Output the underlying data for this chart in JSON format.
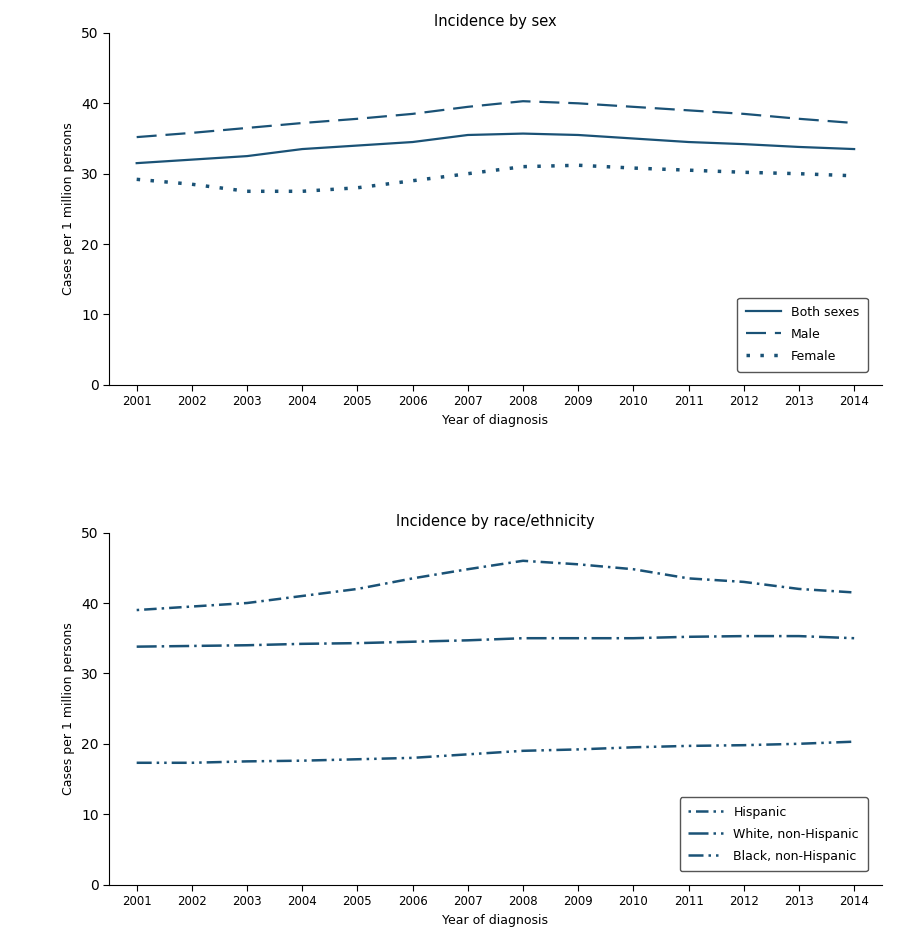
{
  "years": [
    2001,
    2002,
    2003,
    2004,
    2005,
    2006,
    2007,
    2008,
    2009,
    2010,
    2011,
    2012,
    2013,
    2014
  ],
  "sex": {
    "title": "Incidence by sex",
    "both_sexes": [
      31.5,
      32.0,
      32.5,
      33.5,
      34.0,
      34.5,
      35.5,
      35.7,
      35.5,
      35.0,
      34.5,
      34.2,
      33.8,
      33.5
    ],
    "male": [
      35.2,
      35.8,
      36.5,
      37.2,
      37.8,
      38.5,
      39.5,
      40.3,
      40.0,
      39.5,
      39.0,
      38.5,
      37.8,
      37.2
    ],
    "female": [
      29.2,
      28.5,
      27.5,
      27.5,
      28.0,
      29.0,
      30.0,
      31.0,
      31.2,
      30.8,
      30.5,
      30.2,
      30.0,
      29.7
    ]
  },
  "race": {
    "title": "Incidence by race/ethnicity",
    "hispanic": [
      39.0,
      39.5,
      40.0,
      41.0,
      42.0,
      43.5,
      44.8,
      46.0,
      45.5,
      44.8,
      43.5,
      43.0,
      42.0,
      41.5
    ],
    "white_non_hispanic": [
      33.8,
      33.9,
      34.0,
      34.2,
      34.3,
      34.5,
      34.7,
      35.0,
      35.0,
      35.0,
      35.2,
      35.3,
      35.3,
      35.0
    ],
    "black_non_hispanic": [
      17.3,
      17.3,
      17.5,
      17.6,
      17.8,
      18.0,
      18.5,
      19.0,
      19.2,
      19.5,
      19.7,
      19.8,
      20.0,
      20.3
    ]
  },
  "line_color": "#1a5276",
  "ylabel": "Cases per 1 million persons",
  "xlabel": "Year of diagnosis",
  "ylim": [
    0,
    50
  ],
  "yticks": [
    0,
    10,
    20,
    30,
    40,
    50
  ]
}
